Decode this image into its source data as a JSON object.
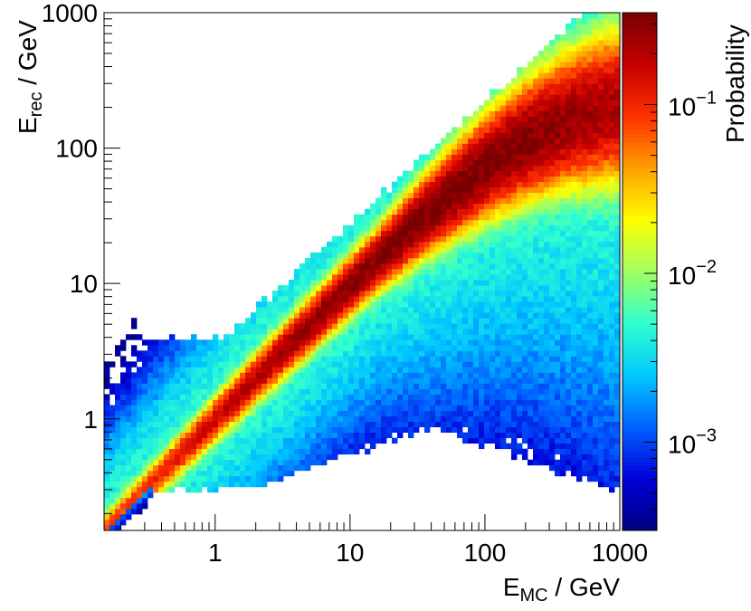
{
  "chart_data": {
    "type": "heatmap",
    "xlabel": {
      "main": "E",
      "sub": "MC",
      "suffix": " / GeV"
    },
    "ylabel": {
      "main": "E",
      "sub": "rec",
      "suffix": " / GeV"
    },
    "colorbar_label": "Probability",
    "x_scale": "log",
    "y_scale": "log",
    "xlim": [
      0.15,
      1000
    ],
    "ylim": [
      0.15,
      1000
    ],
    "zlim": [
      0.0003,
      0.35
    ],
    "x_ticks": [
      {
        "value": 1,
        "label": "1"
      },
      {
        "value": 10,
        "label": "10"
      },
      {
        "value": 100,
        "label": "100"
      },
      {
        "value": 1000,
        "label": "1000"
      }
    ],
    "y_ticks": [
      {
        "value": 1,
        "label": "1"
      },
      {
        "value": 10,
        "label": "10"
      },
      {
        "value": 100,
        "label": "100"
      },
      {
        "value": 1000,
        "label": "1000"
      }
    ],
    "z_ticks": [
      {
        "value": 0.001,
        "base": "10",
        "exp": "−3"
      },
      {
        "value": 0.01,
        "base": "10",
        "exp": "−2"
      },
      {
        "value": 0.1,
        "base": "10",
        "exp": "−1"
      }
    ],
    "colormap": [
      "#000080",
      "#0000d8",
      "#0060ff",
      "#00c8ff",
      "#30ffd0",
      "#a0ff60",
      "#ffff00",
      "#ffa000",
      "#ff3000",
      "#c80000",
      "#780000"
    ],
    "bins_per_axis": 95,
    "distribution": {
      "peak_value": 0.35,
      "diagonal_peak_energy": 45,
      "upper_edge_at_low_energy": 17,
      "upper_edge_minimum": 3.8,
      "lower_edge_minimum": 0.3
    },
    "grid": false,
    "legend": "colorbar-right"
  }
}
